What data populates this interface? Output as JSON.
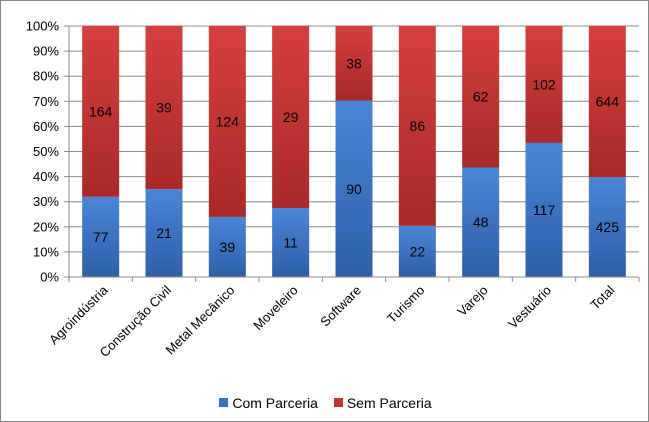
{
  "chart_data": {
    "type": "bar",
    "stacked": "percent",
    "categories": [
      "Agroindústria",
      "Construção Civil",
      "Metal Mecânico",
      "Moveleiro",
      "Software",
      "Turismo",
      "Varejo",
      "Vestuário",
      "Total"
    ],
    "series": [
      {
        "name": "Com Parceria",
        "values": [
          77,
          21,
          39,
          11,
          90,
          22,
          48,
          117,
          425
        ],
        "color": "#3a6fc0"
      },
      {
        "name": "Sem Parceria",
        "values": [
          164,
          39,
          124,
          29,
          38,
          86,
          62,
          102,
          644
        ],
        "color": "#c23531"
      }
    ],
    "yticks": [
      "0%",
      "10%",
      "20%",
      "30%",
      "40%",
      "50%",
      "60%",
      "70%",
      "80%",
      "90%",
      "100%"
    ],
    "ylim": [
      0,
      100
    ],
    "grid": true,
    "legend_position": "bottom",
    "title": "",
    "xlabel": "",
    "ylabel": ""
  }
}
